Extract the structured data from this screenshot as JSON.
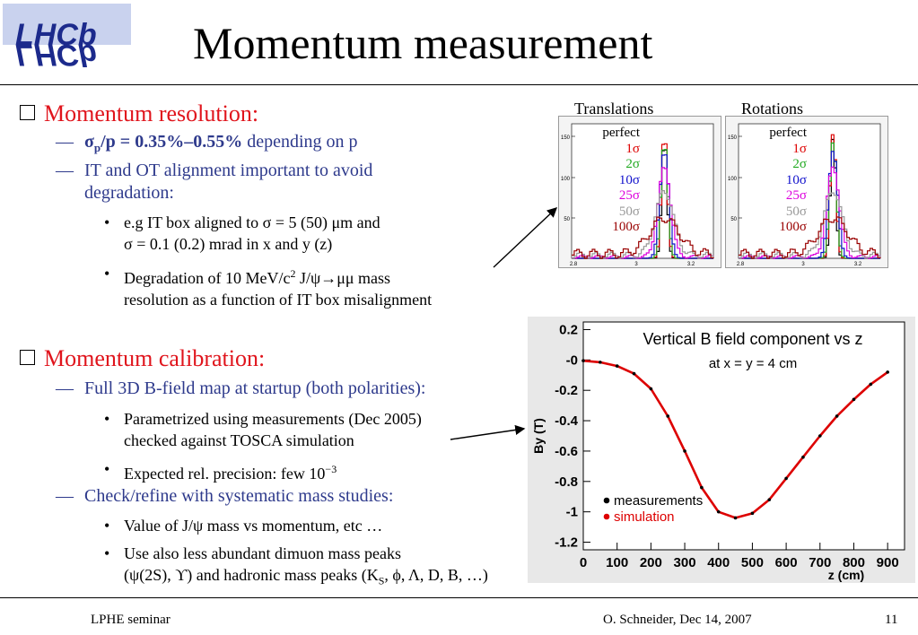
{
  "header": {
    "logo_text": "LHCb",
    "title": "Momentum measurement"
  },
  "section1": {
    "heading": "Momentum resolution:",
    "res_pre": "σ",
    "res_sub": "p",
    "res_bold": "/p = 0.35%–0.55%",
    "res_rest": " depending on p",
    "align_line1": "IT and OT alignment important to avoid",
    "align_line2": "degradation:",
    "b1_line1": "e.g IT box aligned to σ = 5 (50) μm and",
    "b1_line2": "σ = 0.1 (0.2) mrad in x and y (z)",
    "b2_pre": "Degradation of 10 MeV/c",
    "b2_sup": "2",
    "b2_post": " J/ψ→μμ mass",
    "b2_line2": "resolution as a function of IT box misalignment"
  },
  "section2": {
    "heading": "Momentum calibration:",
    "field_map": "Full 3D B-field map at startup (both polarities):",
    "b1_line1": "Parametrized using measurements (Dec 2005)",
    "b1_line2": "checked against TOSCA simulation",
    "b2_pre": "Expected rel. precision: few 10",
    "b2_sup": "−3",
    "check": "Check/refine with systematic mass studies:",
    "b3": "Value of J/ψ mass vs momentum, etc …",
    "b4_line1": "Use also less abundant dimuon mass peaks",
    "b4_pre": "(ψ(2S), ϒ) and hadronic mass peaks (K",
    "b4_sub": "S",
    "b4_post": ", ϕ, Λ, D, B, …)"
  },
  "histograms": {
    "left_label": "Translations",
    "right_label": "Rotations",
    "legend": [
      {
        "text": "perfect",
        "color": "#000000"
      },
      {
        "text": "1σ",
        "color": "#dd0000"
      },
      {
        "text": "2σ",
        "color": "#22aa22"
      },
      {
        "text": "10σ",
        "color": "#1111cc"
      },
      {
        "text": "25σ",
        "color": "#dd00dd"
      },
      {
        "text": "50σ",
        "color": "#999999"
      },
      {
        "text": "100σ",
        "color": "#990000"
      }
    ],
    "y_ticks": [
      "150",
      "100",
      "50"
    ],
    "x_ticks": [
      "2.8",
      "3",
      "3.2"
    ]
  },
  "chart_data": {
    "type": "line",
    "title": "Vertical B field component vs z",
    "subtitle": "at x = y = 4 cm",
    "xlabel": "z (cm)",
    "ylabel": "By (T)",
    "xlim": [
      0,
      950
    ],
    "ylim": [
      -1.25,
      0.25
    ],
    "x_ticks": [
      "0",
      "100",
      "200",
      "300",
      "400",
      "500",
      "600",
      "700",
      "800",
      "900"
    ],
    "y_ticks": [
      "0.2",
      "-0",
      "-0.2",
      "-0.4",
      "-0.6",
      "-0.8",
      "-1",
      "-1.2"
    ],
    "legend_position": "bottom-left",
    "series": [
      {
        "name": "measurements",
        "color": "#000000",
        "x": [
          0,
          50,
          100,
          150,
          200,
          250,
          300,
          350,
          400,
          450,
          500,
          550,
          600,
          650,
          700,
          750,
          800,
          850,
          900
        ],
        "y": [
          -0.005,
          -0.015,
          -0.04,
          -0.09,
          -0.19,
          -0.37,
          -0.6,
          -0.84,
          -1.0,
          -1.04,
          -1.01,
          -0.92,
          -0.78,
          -0.64,
          -0.5,
          -0.37,
          -0.26,
          -0.16,
          -0.08
        ]
      },
      {
        "name": "simulation",
        "color": "#dd0000",
        "x": [
          0,
          50,
          100,
          150,
          200,
          250,
          300,
          350,
          400,
          450,
          500,
          550,
          600,
          650,
          700,
          750,
          800,
          850,
          900
        ],
        "y": [
          -0.005,
          -0.015,
          -0.04,
          -0.09,
          -0.19,
          -0.37,
          -0.6,
          -0.84,
          -1.0,
          -1.04,
          -1.01,
          -0.92,
          -0.78,
          -0.64,
          -0.5,
          -0.37,
          -0.26,
          -0.16,
          -0.08
        ]
      }
    ]
  },
  "footer": {
    "left": "LPHE seminar",
    "center": "O. Schneider, Dec 14, 2007",
    "page": "11"
  }
}
